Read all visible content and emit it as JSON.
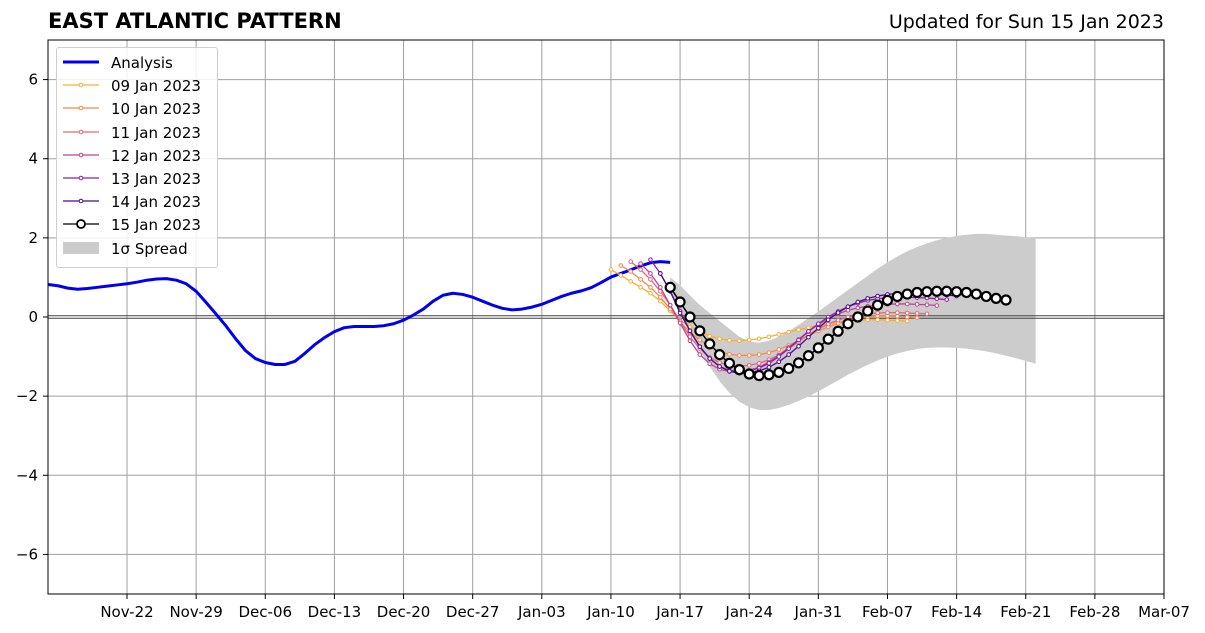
{
  "header": {
    "title": "EAST ATLANTIC PATTERN",
    "updated": "Updated for Sun 15 Jan 2023"
  },
  "chart_data": {
    "type": "line",
    "title": "EAST ATLANTIC PATTERN",
    "subtitle": "Updated for Sun 15 Jan 2023",
    "xlabel": "",
    "ylabel": "",
    "x_axis": {
      "type": "date",
      "min": "2022-11-14",
      "max": "2023-03-07",
      "ticks": [
        "Nov-22",
        "Nov-29",
        "Dec-06",
        "Dec-13",
        "Dec-20",
        "Dec-27",
        "Jan-03",
        "Jan-10",
        "Jan-17",
        "Jan-24",
        "Jan-31",
        "Feb-07",
        "Feb-14",
        "Feb-21",
        "Feb-28",
        "Mar-07"
      ]
    },
    "y_axis": {
      "min": -7,
      "max": 7,
      "ticks": [
        -6,
        -4,
        -2,
        0,
        2,
        4,
        6
      ],
      "tick_labels": [
        "−6",
        "−4",
        "−2",
        "0",
        "2",
        "4",
        "6"
      ]
    },
    "grid": true,
    "legend_position": "top-left",
    "series": [
      {
        "name": "Analysis",
        "color": "#0000ee",
        "start": "2022-11-14",
        "values": [
          0.82,
          0.79,
          0.73,
          0.7,
          0.72,
          0.75,
          0.78,
          0.81,
          0.84,
          0.88,
          0.93,
          0.96,
          0.97,
          0.93,
          0.84,
          0.65,
          0.37,
          0.08,
          -0.22,
          -0.55,
          -0.85,
          -1.05,
          -1.15,
          -1.2,
          -1.2,
          -1.12,
          -0.92,
          -0.7,
          -0.52,
          -0.37,
          -0.27,
          -0.24,
          -0.24,
          -0.24,
          -0.22,
          -0.17,
          -0.08,
          0.05,
          0.2,
          0.4,
          0.55,
          0.6,
          0.57,
          0.5,
          0.4,
          0.3,
          0.22,
          0.18,
          0.2,
          0.25,
          0.32,
          0.42,
          0.52,
          0.6,
          0.66,
          0.74,
          0.87,
          1.01,
          1.1,
          1.19,
          1.29,
          1.37,
          1.4,
          1.38
        ]
      },
      {
        "name": "09 Jan 2023",
        "color": "#f8ae32",
        "start": "2023-01-10",
        "values": [
          1.2,
          1.05,
          0.9,
          0.75,
          0.6,
          0.4,
          0.15,
          -0.08,
          -0.25,
          -0.38,
          -0.48,
          -0.55,
          -0.59,
          -0.6,
          -0.58,
          -0.55,
          -0.5,
          -0.44,
          -0.38,
          -0.32,
          -0.27,
          -0.21,
          -0.17,
          -0.13,
          -0.1,
          -0.08,
          -0.07,
          -0.07,
          -0.08,
          -0.09,
          -0.1
        ]
      },
      {
        "name": "10 Jan 2023",
        "color": "#f5894b",
        "start": "2023-01-11",
        "values": [
          1.3,
          1.15,
          0.95,
          0.75,
          0.5,
          0.2,
          -0.12,
          -0.38,
          -0.58,
          -0.75,
          -0.87,
          -0.94,
          -0.97,
          -0.97,
          -0.95,
          -0.9,
          -0.82,
          -0.72,
          -0.6,
          -0.47,
          -0.35,
          -0.25,
          -0.16,
          -0.08,
          -0.02,
          0.01,
          0.03,
          0.03,
          0.02,
          0.0,
          -0.02
        ]
      },
      {
        "name": "11 Jan 2023",
        "color": "#e2677b",
        "start": "2023-01-12",
        "values": [
          1.4,
          1.2,
          0.95,
          0.65,
          0.3,
          -0.1,
          -0.5,
          -0.8,
          -1.02,
          -1.15,
          -1.22,
          -1.24,
          -1.22,
          -1.17,
          -1.08,
          -0.96,
          -0.8,
          -0.62,
          -0.45,
          -0.3,
          -0.18,
          -0.08,
          0.0,
          0.05,
          0.08,
          0.1,
          0.11,
          0.11,
          0.1,
          0.09,
          0.08
        ]
      },
      {
        "name": "12 Jan 2023",
        "color": "#c2418f",
        "start": "2023-01-13",
        "values": [
          1.35,
          1.1,
          0.75,
          0.3,
          -0.15,
          -0.6,
          -0.95,
          -1.18,
          -1.32,
          -1.38,
          -1.39,
          -1.35,
          -1.27,
          -1.14,
          -0.97,
          -0.77,
          -0.57,
          -0.37,
          -0.19,
          -0.04,
          0.08,
          0.17,
          0.23,
          0.27,
          0.3,
          0.32,
          0.33,
          0.33,
          0.32,
          0.31,
          0.29
        ]
      },
      {
        "name": "13 Jan 2023",
        "color": "#8f1fa8",
        "start": "2023-01-14",
        "values": [
          1.45,
          1.1,
          0.65,
          0.15,
          -0.35,
          -0.75,
          -1.05,
          -1.25,
          -1.35,
          -1.38,
          -1.36,
          -1.29,
          -1.17,
          -1.0,
          -0.8,
          -0.58,
          -0.36,
          -0.17,
          0.0,
          0.14,
          0.26,
          0.35,
          0.42,
          0.46,
          0.49,
          0.5,
          0.5,
          0.49,
          0.48,
          0.46,
          0.44
        ]
      },
      {
        "name": "14 Jan 2023",
        "color": "#4a0b8c",
        "start": "2023-01-15",
        "values": [
          1.1,
          0.65,
          0.1,
          -0.35,
          -0.75,
          -1.05,
          -1.25,
          -1.37,
          -1.42,
          -1.41,
          -1.36,
          -1.27,
          -1.13,
          -0.95,
          -0.74,
          -0.51,
          -0.28,
          -0.07,
          0.11,
          0.26,
          0.38,
          0.47,
          0.53,
          0.57,
          0.6,
          0.61,
          0.61,
          0.6,
          0.58,
          0.56,
          0.53
        ]
      },
      {
        "name": "15 Jan 2023",
        "color": "#000000",
        "start": "2023-01-16",
        "values": [
          0.75,
          0.38,
          0.0,
          -0.35,
          -0.68,
          -0.95,
          -1.17,
          -1.33,
          -1.44,
          -1.48,
          -1.46,
          -1.4,
          -1.3,
          -1.16,
          -0.98,
          -0.78,
          -0.56,
          -0.36,
          -0.17,
          0.0,
          0.15,
          0.3,
          0.42,
          0.52,
          0.58,
          0.62,
          0.64,
          0.65,
          0.65,
          0.64,
          0.62,
          0.58,
          0.52,
          0.47,
          0.43
        ]
      }
    ],
    "spread": {
      "name": "1σ Spread",
      "color": "#cccccc",
      "start": "2023-01-16",
      "upper": [
        1.0,
        0.8,
        0.55,
        0.3,
        0.1,
        -0.1,
        -0.3,
        -0.5,
        -0.62,
        -0.65,
        -0.6,
        -0.5,
        -0.36,
        -0.2,
        -0.03,
        0.14,
        0.32,
        0.5,
        0.68,
        0.86,
        1.04,
        1.22,
        1.38,
        1.53,
        1.66,
        1.77,
        1.86,
        1.94,
        2.0,
        2.05,
        2.08,
        2.1,
        2.1,
        2.08,
        2.06,
        2.04,
        2.02,
        2.0
      ],
      "lower": [
        0.6,
        0.1,
        -0.4,
        -0.85,
        -1.25,
        -1.62,
        -1.92,
        -2.14,
        -2.28,
        -2.35,
        -2.35,
        -2.3,
        -2.22,
        -2.12,
        -2.01,
        -1.88,
        -1.74,
        -1.6,
        -1.46,
        -1.33,
        -1.21,
        -1.1,
        -1.0,
        -0.92,
        -0.86,
        -0.81,
        -0.78,
        -0.77,
        -0.77,
        -0.78,
        -0.8,
        -0.83,
        -0.87,
        -0.92,
        -0.98,
        -1.04,
        -1.11,
        -1.18
      ]
    }
  }
}
